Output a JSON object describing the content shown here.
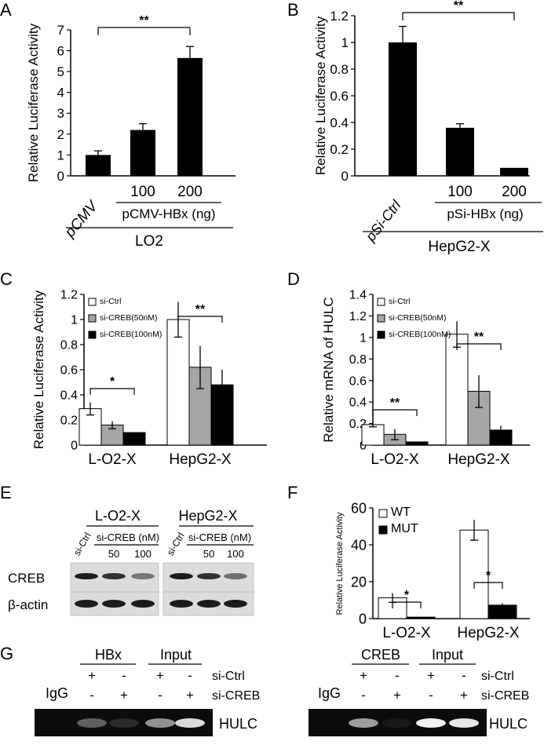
{
  "colors": {
    "bar_black": "#000000",
    "bar_gray": "#a6a6a6",
    "bar_white": "#ffffff",
    "blot_bg": "#dcdcdc",
    "gel_bg": "#0c0c0c"
  },
  "chart_data": [
    {
      "panel": "A",
      "type": "bar",
      "ylabel": "Relative Luciferase Activity",
      "ylim": [
        0,
        7
      ],
      "yticks": [
        "0",
        "1",
        "2",
        "3",
        "4",
        "5",
        "6",
        "7"
      ],
      "categories": [
        "pCMV",
        "100",
        "200"
      ],
      "values": [
        1.0,
        2.2,
        5.65
      ],
      "errors": [
        0.2,
        0.3,
        0.55
      ],
      "group_label": "pCMV-HBx (ng)",
      "cell_label": "LO2",
      "significance": "**"
    },
    {
      "panel": "B",
      "type": "bar",
      "ylabel": "Relative Luciferase Activity",
      "ylim": [
        0,
        1.2
      ],
      "yticks": [
        "0",
        "0.2",
        "0.4",
        "0.6",
        "0.8",
        "1",
        "1.2"
      ],
      "categories": [
        "pSi-Ctrl",
        "100",
        "200"
      ],
      "values": [
        1.0,
        0.36,
        0.06
      ],
      "errors": [
        0.12,
        0.03,
        0.0
      ],
      "group_label": "pSi-HBx (ng)",
      "cell_label": "HepG2-X",
      "significance": "**"
    },
    {
      "panel": "C",
      "type": "bar",
      "ylabel": "Relative Luciferase Activity",
      "ylim": [
        0,
        1.2
      ],
      "yticks": [
        "0",
        "0.2",
        "0.4",
        "0.6",
        "0.8",
        "1",
        "1.2"
      ],
      "categories": [
        "L-O2-X",
        "HepG2-X"
      ],
      "series": [
        {
          "name": "si-Ctrl",
          "values": [
            0.29,
            1.0
          ],
          "errors": [
            0.05,
            0.14
          ]
        },
        {
          "name": "si-CREB(50nM)",
          "values": [
            0.16,
            0.62
          ],
          "errors": [
            0.03,
            0.17
          ]
        },
        {
          "name": "si-CREB(100nM)",
          "values": [
            0.1,
            0.48
          ],
          "errors": [
            0.0,
            0.12
          ]
        }
      ],
      "significance": [
        "*",
        "**"
      ]
    },
    {
      "panel": "D",
      "type": "bar",
      "ylabel": "Relative mRNA of HULC",
      "ylim": [
        0,
        1.4
      ],
      "yticks": [
        "0",
        "0.2",
        "0.4",
        "0.6",
        "0.8",
        "1",
        "1.2",
        "1.4"
      ],
      "categories": [
        "L-O2-X",
        "HepG2-X"
      ],
      "series": [
        {
          "name": "si-Ctrl",
          "values": [
            0.19,
            1.03
          ],
          "errors": [
            0.02,
            0.12
          ]
        },
        {
          "name": "si-CREB(50nM)",
          "values": [
            0.1,
            0.5
          ],
          "errors": [
            0.05,
            0.15
          ]
        },
        {
          "name": "si-CREB(100nM)",
          "values": [
            0.03,
            0.14
          ],
          "errors": [
            0.0,
            0.04
          ]
        }
      ],
      "significance": [
        "**",
        "**"
      ]
    },
    {
      "panel": "F",
      "type": "bar",
      "ylabel": "Relative Luciferase Activity",
      "ylim": [
        0,
        60
      ],
      "yticks": [
        "0",
        "20",
        "40",
        "60"
      ],
      "categories": [
        "L-O2-X",
        "HepG2-X"
      ],
      "series": [
        {
          "name": "WT",
          "values": [
            11.3,
            48.0
          ],
          "errors": [
            2.5,
            5.5
          ]
        },
        {
          "name": "MUT",
          "values": [
            0.8,
            7.3
          ],
          "errors": [
            0.0,
            1.0
          ]
        }
      ],
      "significance": [
        "*",
        "*"
      ]
    }
  ],
  "panel_E": {
    "groups": [
      "L-O2-X",
      "HepG2-X"
    ],
    "lane_ctrl": "si-Ctrl",
    "lane_group": "si-CREB (nM)",
    "doses": [
      "50",
      "100"
    ],
    "rows": [
      "CREB",
      "β-actin"
    ],
    "creb_intensity": [
      [
        1.0,
        0.85,
        0.35
      ],
      [
        1.0,
        0.85,
        0.4
      ]
    ]
  },
  "panel_G": {
    "left": {
      "group1": "HBx",
      "group2": "Input"
    },
    "right": {
      "group1": "CREB",
      "group2": "Input"
    },
    "row_labels": [
      "si-Ctrl",
      "si-CREB"
    ],
    "igg": "IgG",
    "product": "HULC",
    "plus": "+",
    "minus": "-",
    "pattern_ctrl": [
      "+",
      "-",
      "+",
      "-"
    ],
    "pattern_creb": [
      "-",
      "+",
      "-",
      "+"
    ],
    "left_band_intensity": [
      0.35,
      0.12,
      0.55,
      0.85
    ],
    "right_band_intensity": [
      0.6,
      0.05,
      0.95,
      0.9
    ]
  }
}
